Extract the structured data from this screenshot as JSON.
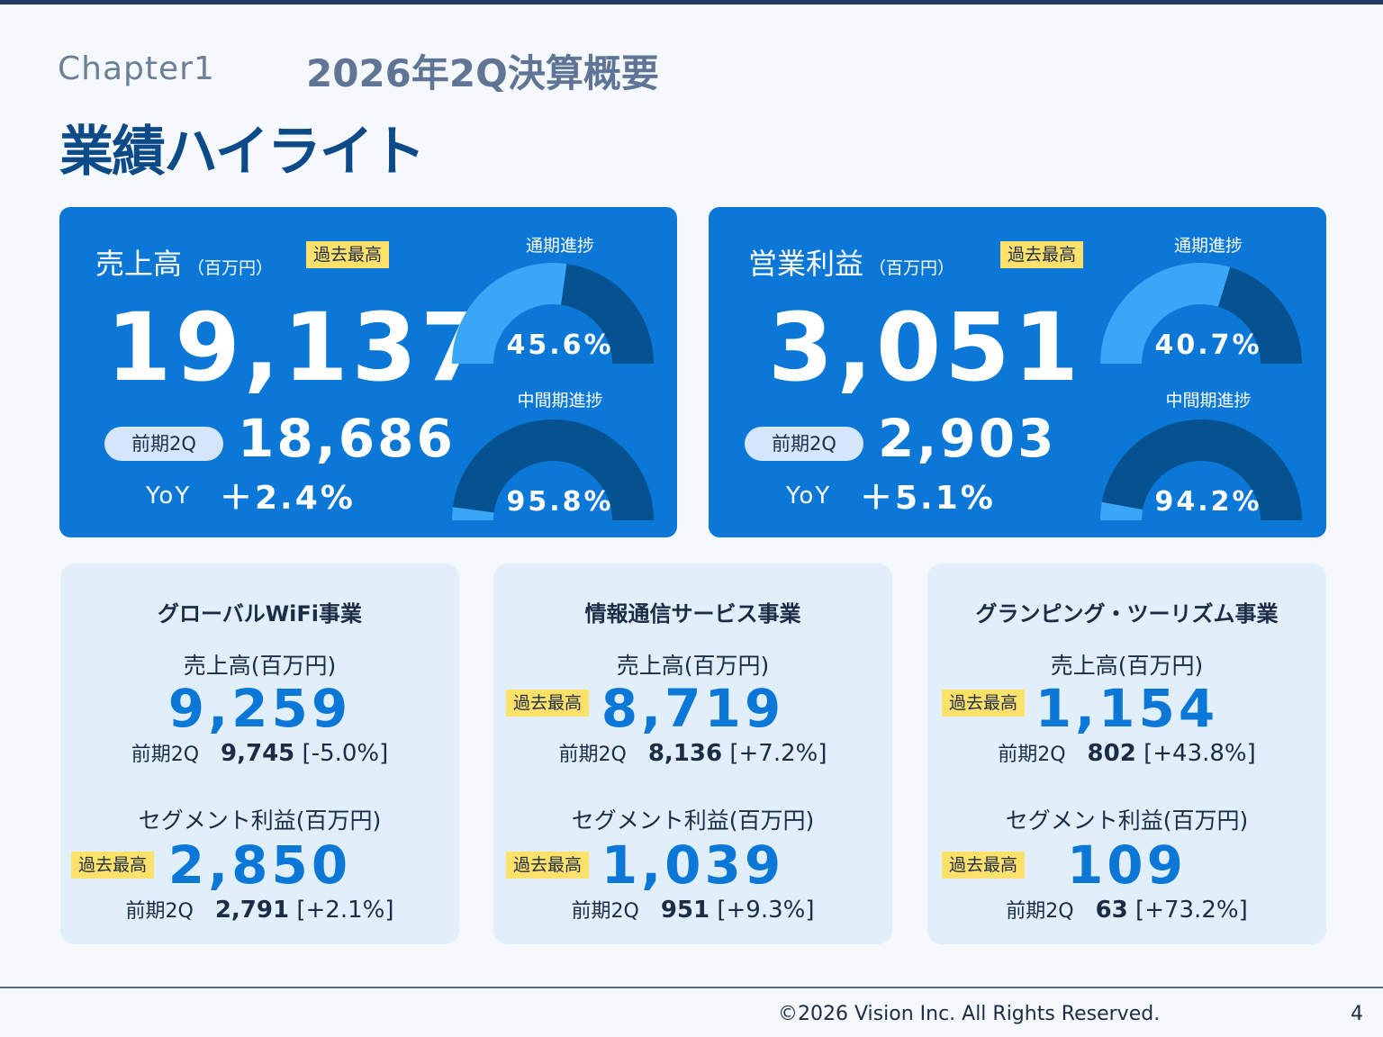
{
  "header": {
    "chapter": "Chapter1",
    "subtitle": "2026年2Q決算概要",
    "title": "業績ハイライト"
  },
  "kpis": [
    {
      "label": "売上高",
      "unit": "（百万円）",
      "badge": "過去最高",
      "value": "19,137",
      "prev_label": "前期2Q",
      "prev_value": "18,686",
      "yoy_label": "YoY",
      "yoy_value": "＋2.4%",
      "gauges": [
        {
          "title": "通期進捗",
          "pct_text": "45.6%",
          "pct": 45.6
        },
        {
          "title": "中間期進捗",
          "pct_text": "95.8%",
          "pct": 95.8
        }
      ]
    },
    {
      "label": "営業利益",
      "unit": "（百万円）",
      "badge": "過去最高",
      "value": "3,051",
      "prev_label": "前期2Q",
      "prev_value": "2,903",
      "yoy_label": "YoY",
      "yoy_value": "＋5.1%",
      "gauges": [
        {
          "title": "通期進捗",
          "pct_text": "40.7%",
          "pct": 40.7
        },
        {
          "title": "中間期進捗",
          "pct_text": "94.2%",
          "pct": 94.2
        }
      ]
    }
  ],
  "segments": [
    {
      "name": "グローバルWiFi事業",
      "sales_label": "売上高(百万円)",
      "sales_value": "9,259",
      "sales_badge": "",
      "sales_prev_label": "前期2Q",
      "sales_prev_value": "9,745",
      "sales_change": "[-5.0%]",
      "profit_label": "セグメント利益(百万円)",
      "profit_value": "2,850",
      "profit_badge": "過去最高",
      "profit_prev_label": "前期2Q",
      "profit_prev_value": "2,791",
      "profit_change": "[+2.1%]"
    },
    {
      "name": "情報通信サービス事業",
      "sales_label": "売上高(百万円)",
      "sales_value": "8,719",
      "sales_badge": "過去最高",
      "sales_prev_label": "前期2Q",
      "sales_prev_value": "8,136",
      "sales_change": "[+7.2%]",
      "profit_label": "セグメント利益(百万円)",
      "profit_value": "1,039",
      "profit_badge": "過去最高",
      "profit_prev_label": "前期2Q",
      "profit_prev_value": "951",
      "profit_change": "[+9.3%]"
    },
    {
      "name": "グランピング・ツーリズム事業",
      "sales_label": "売上高(百万円)",
      "sales_value": "1,154",
      "sales_badge": "過去最高",
      "sales_prev_label": "前期2Q",
      "sales_prev_value": "802",
      "sales_change": "[+43.8%]",
      "profit_label": "セグメント利益(百万円)",
      "profit_value": "109",
      "profit_badge": "過去最高",
      "profit_prev_label": "前期2Q",
      "profit_prev_value": "63",
      "profit_change": "[+73.2%]"
    }
  ],
  "footer": {
    "copyright": "©2026 Vision Inc. All Rights Reserved.",
    "page": "4"
  },
  "colors": {
    "card_blue": "#0b78d8",
    "gauge_light": "#3aa6f7",
    "gauge_dark": "#06518f",
    "badge_yellow": "#fde16a",
    "segment_bg": "#e1effb",
    "title_navy": "#0d4a88"
  }
}
